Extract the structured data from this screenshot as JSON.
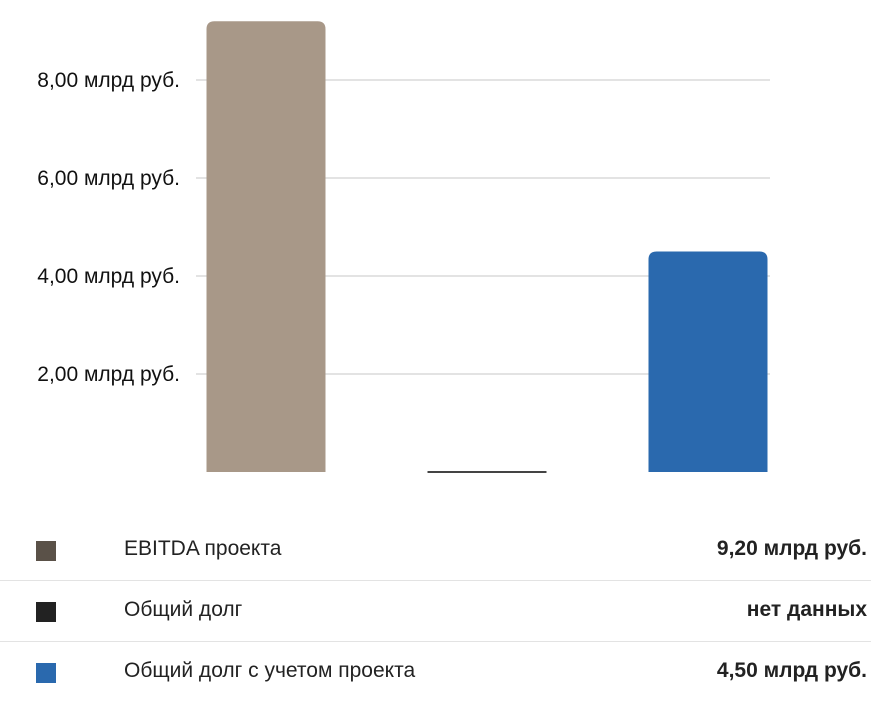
{
  "chart_data": {
    "type": "bar",
    "categories": [
      "EBITDA проекта",
      "Общий долг",
      "Общий долг с учетом проекта"
    ],
    "values": [
      9.2,
      0,
      4.5
    ],
    "colors": [
      "#a89888",
      "#444444",
      "#2a69ae"
    ],
    "unit": "млрд руб.",
    "ylim": [
      0,
      9.2
    ],
    "yticks": [
      2,
      4,
      6,
      8
    ],
    "ytick_labels": [
      "2,00 млрд руб.",
      "4,00 млрд руб.",
      "6,00 млрд руб.",
      "8,00 млрд руб."
    ],
    "grid": true
  },
  "legend": {
    "items": [
      {
        "label": "EBITDA проекта",
        "value": "9,20 млрд руб.",
        "swatch_color": "#5a5148"
      },
      {
        "label": "Общий долг",
        "value": "нет данных",
        "swatch_color": "#222222"
      },
      {
        "label": "Общий долг с учетом проекта",
        "value": "4,50 млрд руб.",
        "swatch_color": "#2a69ae"
      }
    ]
  }
}
